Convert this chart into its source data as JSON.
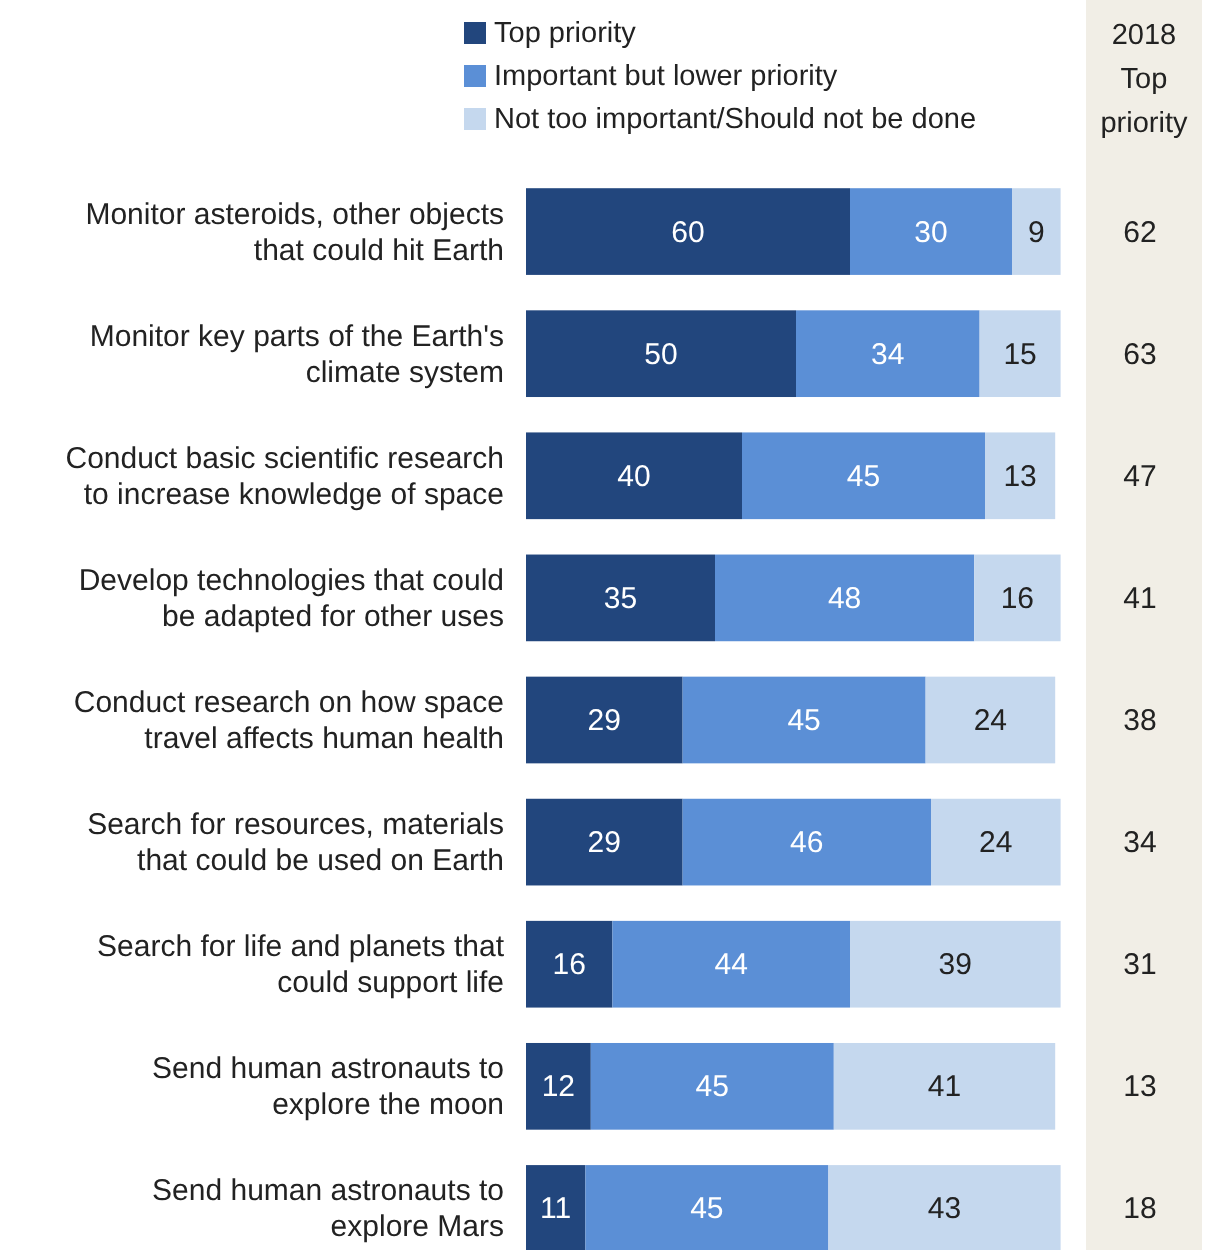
{
  "chart_data": [
    {
      "type": "bar",
      "orientation": "horizontal",
      "stacked": true,
      "data_labels": true,
      "legend": "top",
      "xlim": [
        0,
        100
      ],
      "categories": [
        "Monitor asteroids, other objects\nthat could hit Earth",
        "Monitor key parts of the Earth's\nclimate system",
        "Conduct basic scientific research\nto increase knowledge of space",
        "Develop technologies that could\nbe adapted for other uses",
        "Conduct research on how space\ntravel affects human health",
        "Search for resources, materials\nthat could be used on Earth",
        "Search for life and planets that\ncould support life",
        "Send human astronauts to\nexplore the moon",
        "Send human astronauts to\nexplore Mars"
      ],
      "series": [
        {
          "name": "Top priority",
          "color": "#22467d",
          "values": [
            60,
            50,
            40,
            35,
            29,
            29,
            16,
            12,
            11
          ]
        },
        {
          "name": "Important but lower priority",
          "color": "#5b8fd6",
          "values": [
            30,
            34,
            45,
            48,
            45,
            46,
            44,
            45,
            45
          ]
        },
        {
          "name": "Not too important/Should not be done",
          "color": "#c5d8ee",
          "values": [
            9,
            15,
            13,
            16,
            24,
            24,
            39,
            41,
            43
          ]
        }
      ]
    },
    {
      "type": "other",
      "title": "2018\nTop\npriority",
      "data_labels": true,
      "values": [
        62,
        63,
        47,
        41,
        38,
        34,
        31,
        13,
        18
      ]
    }
  ]
}
